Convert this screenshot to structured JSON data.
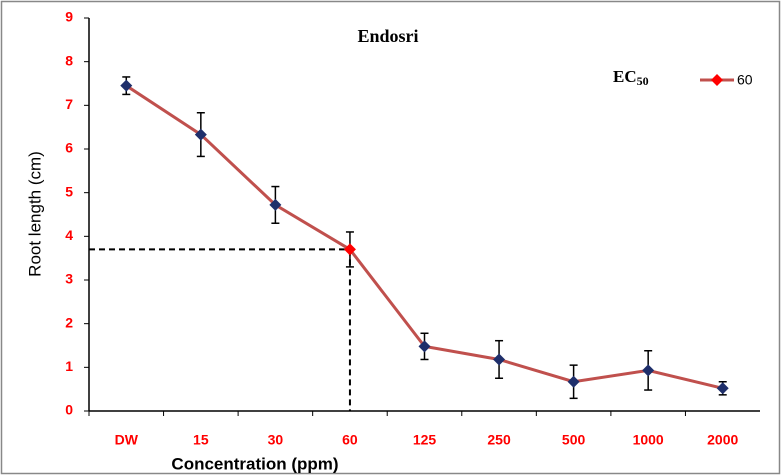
{
  "chart_data": {
    "type": "line",
    "title": "Endosri",
    "xlabel": "Concentration (ppm)",
    "ylabel": "Root length (cm)",
    "categories": [
      "DW",
      "15",
      "30",
      "60",
      "125",
      "250",
      "500",
      "1000",
      "2000"
    ],
    "series": [
      {
        "name": "60",
        "color": "#c0504d",
        "marker_color": "#1f2f6b",
        "highlight_color": "#ff0000",
        "highlight_index": 3,
        "values": [
          7.45,
          6.33,
          4.72,
          3.7,
          1.48,
          1.18,
          0.67,
          0.93,
          0.52
        ],
        "errors": [
          0.2,
          0.5,
          0.42,
          0.4,
          0.3,
          0.43,
          0.38,
          0.45,
          0.15
        ]
      }
    ],
    "legend_title": "EC",
    "legend_title_subscript": "50",
    "ylim": [
      0,
      9
    ],
    "yticks": [
      0,
      1,
      2,
      3,
      4,
      5,
      6,
      7,
      8,
      9
    ],
    "tick_label_color": "#ff0000",
    "grid": false
  }
}
